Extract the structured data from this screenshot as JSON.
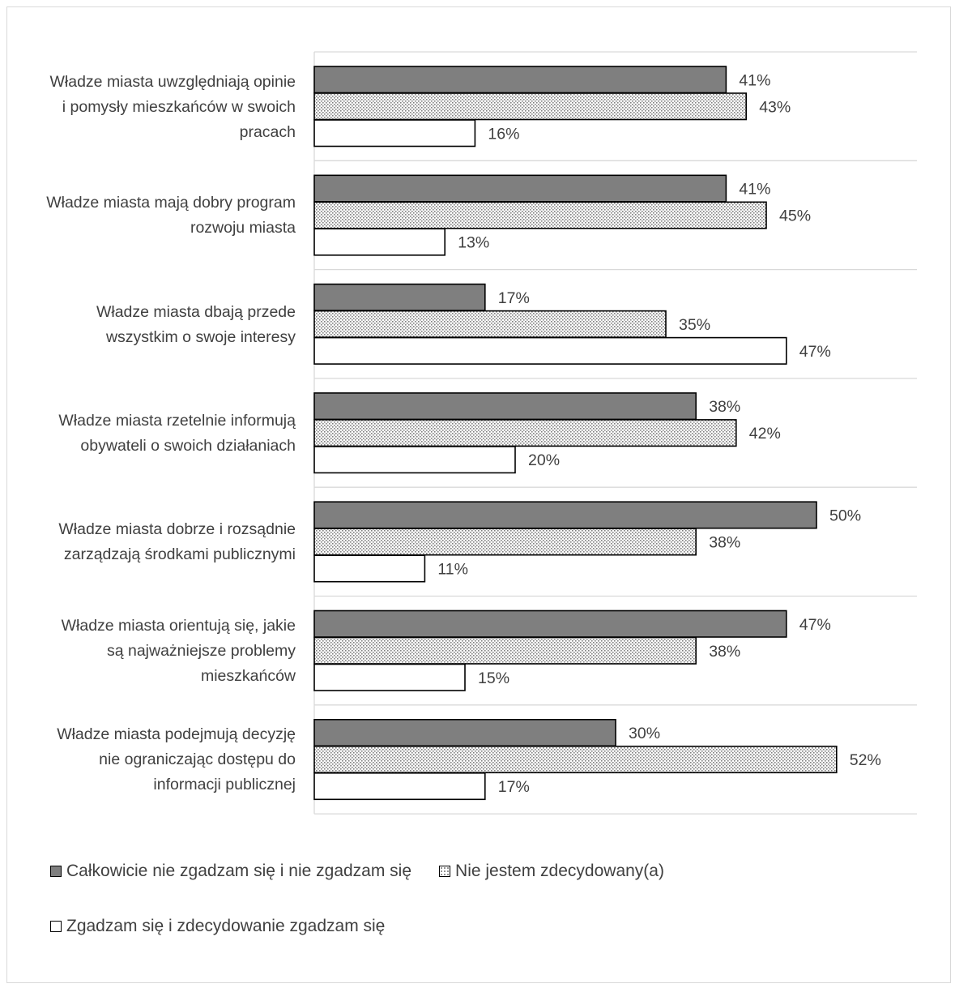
{
  "colors": {
    "series0": "#7f7f7f",
    "series1_dot": "#7f7f7f",
    "series1_bg": "#ffffff",
    "series2": "#ffffff",
    "stroke": "#000000",
    "grid": "#d9d9d9",
    "text": "#404040"
  },
  "chart_data": {
    "type": "bar",
    "orientation": "horizontal",
    "title": "",
    "xlabel": "",
    "ylabel": "",
    "xlim": [
      0,
      60
    ],
    "grid": true,
    "legend_position": "bottom",
    "categories": [
      "Władze miasta uwzględniają opinie i pomysły mieszkańców w swoich pracach",
      "Władze miasta mają dobry program rozwoju miasta",
      "Władze miasta dbają przede wszystkim o swoje interesy",
      "Władze miasta rzetelnie informują obywateli o swoich działaniach",
      "Władze miasta dobrze i rozsądnie zarządzają środkami publicznymi",
      "Władze miasta orientują się, jakie są najważniejsze problemy mieszkańców",
      "Władze miasta podejmują decyzję nie ograniczając dostępu do informacji publicznej"
    ],
    "category_lines": [
      [
        "Władze miasta uwzględniają opinie",
        "i pomysły mieszkańców w swoich",
        "pracach"
      ],
      [
        "Władze miasta mają dobry program",
        "rozwoju miasta"
      ],
      [
        "Władze miasta dbają przede",
        "wszystkim o swoje interesy"
      ],
      [
        "Władze miasta rzetelnie informują",
        "obywateli o swoich działaniach"
      ],
      [
        "Władze miasta dobrze i rozsądnie",
        "zarządzają środkami publicznymi"
      ],
      [
        "Władze miasta orientują się, jakie",
        "są najważniejsze problemy",
        "mieszkańców"
      ],
      [
        "Władze miasta podejmują decyzję",
        "nie ograniczając dostępu do",
        "informacji publicznej"
      ]
    ],
    "series": [
      {
        "name": "Całkowicie nie zgadzam się i nie zgadzam się",
        "pattern": "solid-gray",
        "values": [
          41,
          41,
          17,
          38,
          50,
          47,
          30
        ],
        "labels": [
          "41%",
          "41%",
          "17%",
          "38%",
          "50%",
          "47%",
          "30%"
        ]
      },
      {
        "name": "Nie jestem zdecydowany(a)",
        "pattern": "dotted",
        "values": [
          43,
          45,
          35,
          42,
          38,
          38,
          52
        ],
        "labels": [
          "43%",
          "45%",
          "35%",
          "42%",
          "38%",
          "38%",
          "52%"
        ]
      },
      {
        "name": "Zgadzam się i zdecydowanie zgadzam się",
        "pattern": "white",
        "values": [
          16,
          13,
          47,
          20,
          11,
          15,
          17
        ],
        "labels": [
          "16%",
          "13%",
          "47%",
          "20%",
          "11%",
          "15%",
          "17%"
        ]
      }
    ]
  }
}
